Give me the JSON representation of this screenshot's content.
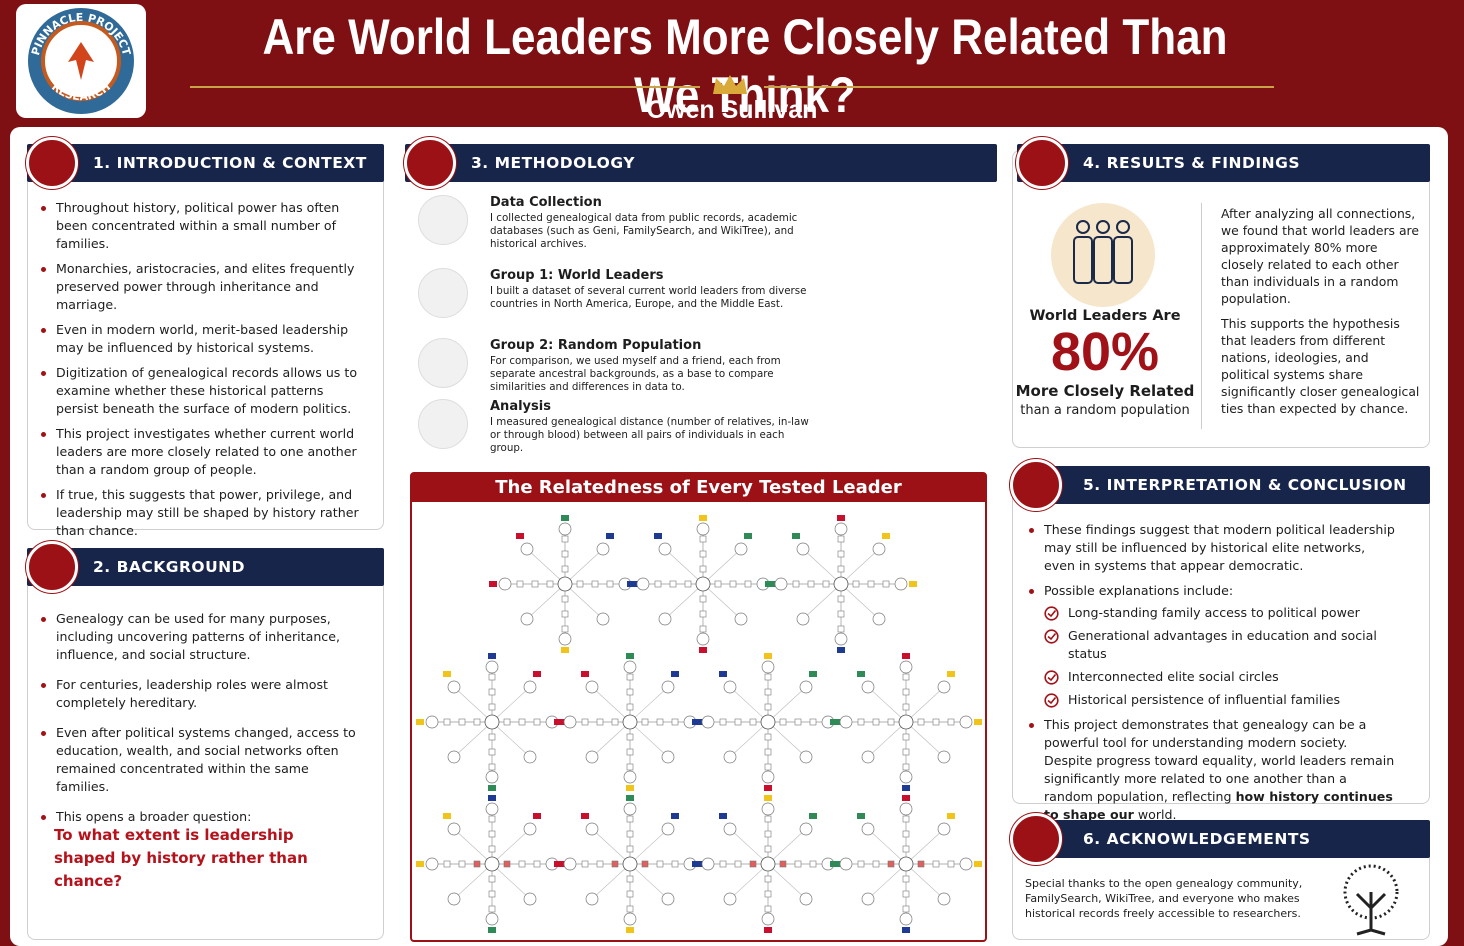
{
  "header": {
    "logo_top": "PINNACLE PROJECT",
    "logo_bottom": "RESEARCH",
    "title": "Are World Leaders More Closely Related Than We Think?",
    "author": "Owen Sullivan"
  },
  "intro": {
    "heading": "1. INTRODUCTION & CONTEXT",
    "bullets": [
      "Throughout history, political power has often been concentrated within a small number of families.",
      "Monarchies, aristocracies, and elites frequently preserved power through inheritance and marriage.",
      "Even in modern world, merit-based leadership may be influenced by historical systems.",
      "Digitization of genealogical records allows us to examine whether these historical patterns persist beneath the surface of modern politics.",
      "This project investigates whether current world leaders are more closely related to one another than a random group of people.",
      "If true, this suggests that power, privilege, and leadership may still be shaped by history rather than chance."
    ]
  },
  "background": {
    "heading": "2. BACKGROUND",
    "bullets": [
      "Genealogy can be used for many purposes, including uncovering patterns of inheritance, influence, and social structure.",
      "For centuries, leadership roles were almost completely hereditary.",
      "Even after political systems changed, access to education, wealth, and social networks often remained concentrated within the same families.",
      "This opens a broader question:"
    ],
    "question": "To what extent is leadership shaped by history rather than chance?"
  },
  "methodology": {
    "heading": "3. METHODOLOGY",
    "steps": [
      {
        "title": "Data Collection",
        "text": "I collected genealogical data from public records, academic databases (such as Geni, FamilySearch, and WikiTree), and historical archives."
      },
      {
        "title": "Group 1: World Leaders",
        "text": "I built a dataset of several current world leaders from diverse countries in North America, Europe, and the Middle East."
      },
      {
        "title": "Group 2: Random Population",
        "text": "For comparison, we used myself and a friend, each from separate ancestral backgrounds, as a base to compare similarities and differences in data to."
      },
      {
        "title": "Analysis",
        "text": "I measured genealogical distance (number of relatives, in-law or through blood) between all pairs of individuals in each group."
      }
    ]
  },
  "figure": {
    "title": "The Relatedness of Every Tested Leader"
  },
  "results": {
    "heading": "4. RESULTS & FINDINGS",
    "stat_pre": "World Leaders Are",
    "stat_value": "80%",
    "stat_post": "More Closely Related",
    "stat_sub": "than a random population",
    "paragraphs": [
      "After analyzing all connections, we found that world leaders are approximately 80% more closely related to each other than individuals in a random population.",
      "This supports the hypothesis that leaders from different nations, ideologies, and political systems share significantly closer genealogical ties than expected by chance."
    ]
  },
  "interpretation": {
    "heading": "5. INTERPRETATION & CONCLUSION",
    "first": "These findings suggest that modern political leadership may still be influenced by historical elite networks, even in systems that appear democratic.",
    "explanations_intro": "Possible explanations include:",
    "explanations": [
      "Long-standing family access to political power",
      "Generational advantages in education and social status",
      "Interconnected elite social circles",
      "Historical persistence of influential families"
    ],
    "conclusion": "This project demonstrates that genealogy can be a powerful tool for understanding modern society. Despite progress toward equality, world leaders remain significantly more related to one another than a random population, reflecting",
    "conclusion_bold": "how history continues to shape our",
    "conclusion_end": "world."
  },
  "acknowledgements": {
    "heading": "6. ACKNOWLEDGEMENTS",
    "text": "Special thanks to the open genealogy community, FamilySearch, WikiTree, and everyone who makes historical records freely accessible to researchers."
  }
}
